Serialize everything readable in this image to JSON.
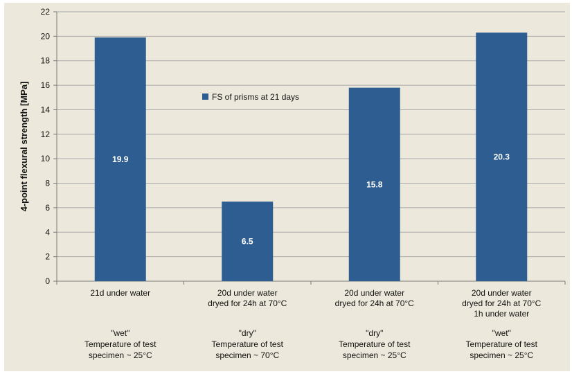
{
  "chart_data": {
    "type": "bar",
    "ylabel": "4-point flexural strength [MPa]",
    "ylim": [
      0,
      22
    ],
    "yticks": [
      0,
      2,
      4,
      6,
      8,
      10,
      12,
      14,
      16,
      18,
      20,
      22
    ],
    "grid": true,
    "legend_position": "center-left",
    "bar_color": "#2e5e91",
    "series": [
      {
        "name": "FS of prisms at 21 days",
        "values": [
          19.9,
          6.5,
          15.8,
          20.3
        ]
      }
    ],
    "data_labels": [
      "19.9",
      "6.5",
      "15.8",
      "20.3"
    ],
    "categories": [
      {
        "lines": [
          "21d under water"
        ],
        "note": [
          "\"wet\"",
          "Temperature of test",
          "specimen ~ 25°C"
        ]
      },
      {
        "lines": [
          "20d under water",
          "dryed for 24h at 70°C"
        ],
        "note": [
          "\"dry\"",
          "Temperature of test",
          "specimen ~ 70°C"
        ]
      },
      {
        "lines": [
          "20d under water",
          "dryed for 24h at 70°C"
        ],
        "note": [
          "\"dry\"",
          "Temperature of test",
          "specimen ~ 25°C"
        ]
      },
      {
        "lines": [
          "20d under water",
          "dryed for 24h at 70°C",
          "1h under water"
        ],
        "note": [
          "\"wet\"",
          "Temperature of test",
          "specimen ~ 25°C"
        ]
      }
    ]
  }
}
